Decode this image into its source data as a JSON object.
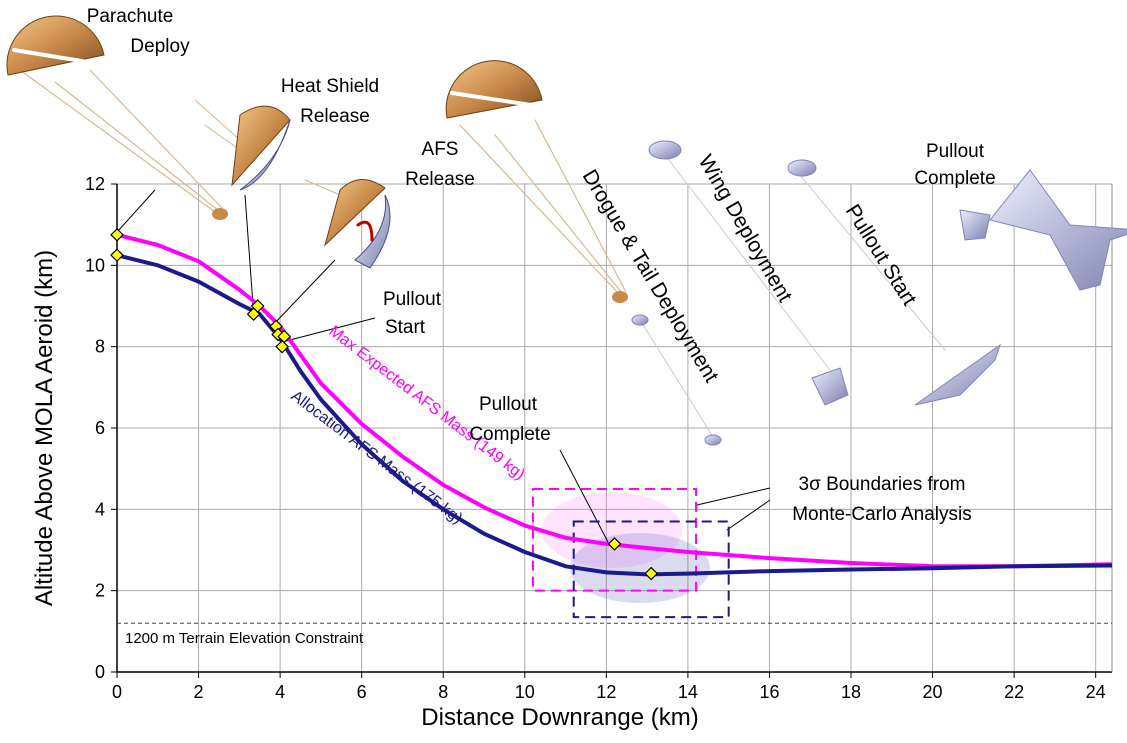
{
  "chart_data": {
    "type": "line",
    "x_label": "Distance Downrange (km)",
    "y_label": "Altitude Above MOLA Aeroid (km)",
    "xlim": [
      0,
      24.4
    ],
    "ylim": [
      0,
      12
    ],
    "xticks": [
      0,
      2,
      4,
      6,
      8,
      10,
      12,
      14,
      16,
      18,
      20,
      22,
      24
    ],
    "yticks": [
      0,
      2,
      4,
      6,
      8,
      10,
      12
    ],
    "grid": true,
    "series": [
      {
        "name": "Max Expected AFS Mass (149 kg)",
        "color": "#ff00ff",
        "x": [
          0,
          1,
          2,
          3,
          3.5,
          4,
          4.5,
          5,
          6,
          7,
          8,
          9,
          10,
          11,
          12,
          13,
          14,
          16,
          18,
          20,
          22,
          24.4
        ],
        "values": [
          10.75,
          10.5,
          10.1,
          9.4,
          9.0,
          8.5,
          7.8,
          7.1,
          6.1,
          5.3,
          4.6,
          4.05,
          3.6,
          3.3,
          3.15,
          3.05,
          2.95,
          2.8,
          2.68,
          2.6,
          2.6,
          2.65
        ]
      },
      {
        "name": "Allocation AFS Mass (175 kg)",
        "color": "#1a1a8c",
        "x": [
          0,
          1,
          2,
          3,
          3.5,
          4,
          4.5,
          5,
          6,
          7,
          8,
          9,
          10,
          11,
          12,
          13,
          14,
          16,
          18,
          20,
          22,
          24.4
        ],
        "values": [
          10.25,
          10.0,
          9.6,
          9.05,
          8.8,
          8.2,
          7.4,
          6.7,
          5.6,
          4.7,
          4.0,
          3.4,
          2.95,
          2.6,
          2.45,
          2.4,
          2.42,
          2.48,
          2.52,
          2.55,
          2.6,
          2.62
        ]
      }
    ],
    "markers": {
      "color": "#ffff00",
      "x": [
        0,
        0,
        3.45,
        3.35,
        3.9,
        3.95,
        4.1,
        4.05,
        12.2,
        13.1
      ],
      "values": [
        10.75,
        10.25,
        9.0,
        8.8,
        8.5,
        8.3,
        8.25,
        8.0,
        3.15,
        2.42
      ]
    },
    "boxes": [
      {
        "color": "#ff00ff",
        "xlim": [
          10.2,
          14.2
        ],
        "ylim": [
          2.0,
          4.5
        ]
      },
      {
        "color": "#1a1a8c",
        "xlim": [
          11.2,
          15.0
        ],
        "ylim": [
          1.35,
          3.7
        ]
      }
    ],
    "constraint": {
      "label": "1200 m Terrain Elevation Constraint",
      "y": 1.2
    },
    "annotations": [
      {
        "lines": [
          "Parachute",
          "Deploy"
        ]
      },
      {
        "lines": [
          "Heat Shield",
          "Release"
        ]
      },
      {
        "lines": [
          "AFS",
          "Release"
        ]
      },
      {
        "lines": [
          "Pullout",
          "Start"
        ]
      },
      {
        "lines": [
          "Pullout",
          "Complete"
        ]
      },
      {
        "lines": [
          "3σ Boundaries from",
          "Monte-Carlo Analysis"
        ]
      },
      {
        "lines": [
          "Drogue & Tail Deployment"
        ]
      },
      {
        "lines": [
          "Wing Deployment"
        ]
      },
      {
        "lines": [
          "Pullout Start"
        ]
      },
      {
        "lines": [
          "Pullout",
          "Complete"
        ]
      }
    ]
  }
}
